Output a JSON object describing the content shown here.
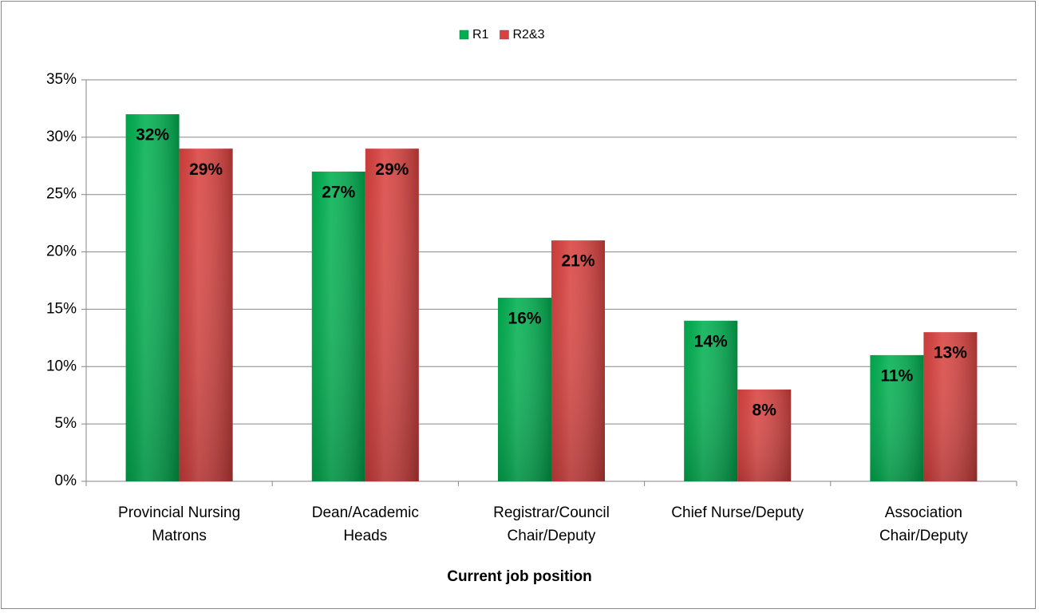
{
  "chart_data": {
    "type": "bar",
    "x_label": "Current job position",
    "categories": [
      "Provincial Nursing Matrons",
      "Dean/Academic Heads",
      "Registrar/Council Chair/Deputy",
      "Chief Nurse/Deputy",
      "Association Chair/Deputy"
    ],
    "series": [
      {
        "name": "R1",
        "color": "#00b050",
        "values": [
          32,
          27,
          16,
          14,
          11
        ],
        "value_labels": [
          "32%",
          "27%",
          "16%",
          "14%",
          "11%"
        ]
      },
      {
        "name": "R2&3",
        "color": "#d9413e",
        "values": [
          29,
          29,
          21,
          8,
          13
        ],
        "value_labels": [
          "29%",
          "29%",
          "21%",
          "8%",
          "13%"
        ]
      }
    ],
    "ylim": [
      0,
      35
    ],
    "yticks": [
      {
        "value": 0,
        "label": "0%"
      },
      {
        "value": 5,
        "label": "5%"
      },
      {
        "value": 10,
        "label": "10%"
      },
      {
        "value": 15,
        "label": "15%"
      },
      {
        "value": 20,
        "label": "20%"
      },
      {
        "value": 25,
        "label": "25%"
      },
      {
        "value": 30,
        "label": "30%"
      },
      {
        "value": 35,
        "label": "35%"
      }
    ],
    "grid": true,
    "legend": "top"
  }
}
